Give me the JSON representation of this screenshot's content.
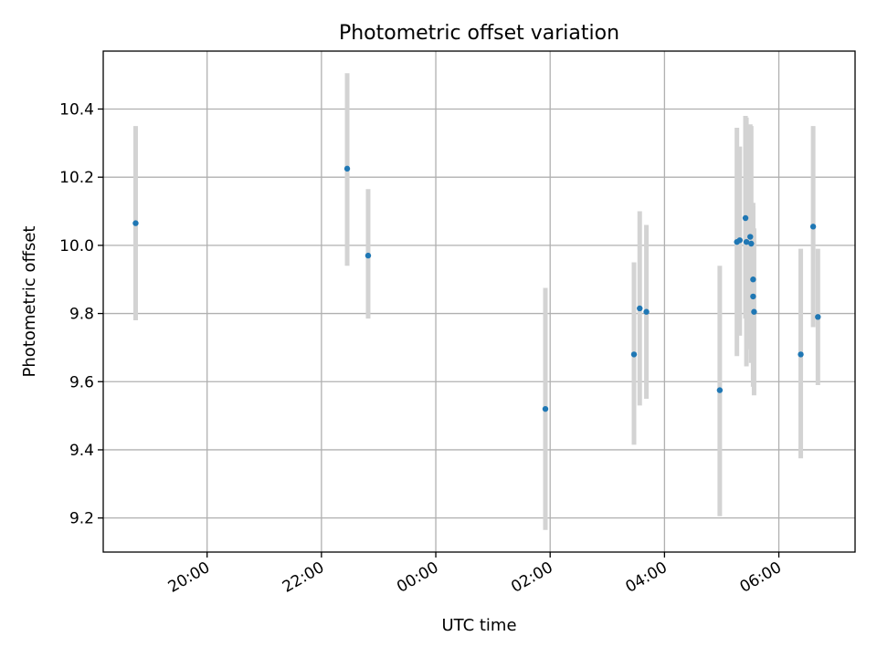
{
  "chart_data": {
    "type": "scatter",
    "title": "Photometric offset variation",
    "xlabel": "UTC time",
    "ylabel": "Photometric offset",
    "x_axis_kind": "time (HH:MM)",
    "xlim": [
      "18:11",
      "07:20"
    ],
    "ylim": [
      9.1,
      10.57
    ],
    "x_ticks": [
      "20:00",
      "22:00",
      "00:00",
      "02:00",
      "04:00",
      "06:00"
    ],
    "y_ticks": [
      "9.2",
      "9.4",
      "9.6",
      "9.8",
      "10.0",
      "10.2",
      "10.4"
    ],
    "grid": true,
    "point_color": "#1f77b4",
    "errorbar_color": "#d3d3d3",
    "series": [
      {
        "points": [
          {
            "time": "18:45",
            "y": 10.065,
            "ylo": 9.78,
            "yhi": 10.35
          },
          {
            "time": "22:27",
            "y": 10.225,
            "ylo": 9.94,
            "yhi": 10.505
          },
          {
            "time": "22:49",
            "y": 9.97,
            "ylo": 9.785,
            "yhi": 10.165
          },
          {
            "time": "01:55",
            "y": 9.52,
            "ylo": 9.165,
            "yhi": 9.875
          },
          {
            "time": "03:28",
            "y": 9.68,
            "ylo": 9.415,
            "yhi": 9.95
          },
          {
            "time": "03:34",
            "y": 9.815,
            "ylo": 9.53,
            "yhi": 10.1
          },
          {
            "time": "03:41",
            "y": 9.805,
            "ylo": 9.55,
            "yhi": 10.06
          },
          {
            "time": "04:58",
            "y": 9.575,
            "ylo": 9.205,
            "yhi": 9.94
          },
          {
            "time": "05:16",
            "y": 10.01,
            "ylo": 9.675,
            "yhi": 10.345
          },
          {
            "time": "05:19",
            "y": 10.015,
            "ylo": 9.735,
            "yhi": 10.29
          },
          {
            "time": "05:25",
            "y": 10.08,
            "ylo": 9.785,
            "yhi": 10.38
          },
          {
            "time": "05:26",
            "y": 10.01,
            "ylo": 9.645,
            "yhi": 10.375
          },
          {
            "time": "05:30",
            "y": 10.025,
            "ylo": 9.695,
            "yhi": 10.355
          },
          {
            "time": "05:31",
            "y": 10.005,
            "ylo": 9.655,
            "yhi": 10.35
          },
          {
            "time": "05:33",
            "y": 9.9,
            "ylo": 9.66,
            "yhi": 10.125
          },
          {
            "time": "05:33",
            "y": 9.85,
            "ylo": 9.585,
            "yhi": 10.115
          },
          {
            "time": "05:34",
            "y": 9.805,
            "ylo": 9.56,
            "yhi": 10.05
          },
          {
            "time": "06:23",
            "y": 9.68,
            "ylo": 9.375,
            "yhi": 9.99
          },
          {
            "time": "06:36",
            "y": 10.055,
            "ylo": 9.76,
            "yhi": 10.35
          },
          {
            "time": "06:41",
            "y": 9.79,
            "ylo": 9.59,
            "yhi": 9.99
          }
        ]
      }
    ]
  }
}
